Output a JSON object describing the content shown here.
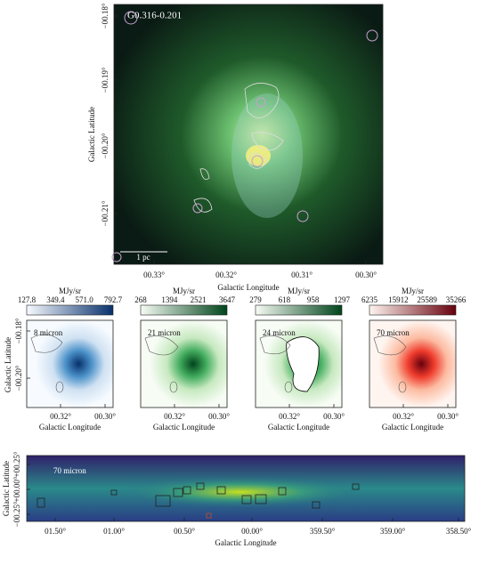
{
  "main": {
    "label": "G0.316-0.201",
    "scale_bar": "1 pc",
    "xlabel": "Galactic Longitude",
    "ylabel": "Galactic Latitude",
    "xticks": [
      "00.33°",
      "00.32°",
      "00.31°",
      "00.30°"
    ],
    "yticks": [
      "−00.18°",
      "−00.19°",
      "−00.20°",
      "−00.21°"
    ]
  },
  "panels": [
    {
      "label": "8 micron",
      "unit": "MJy/sr",
      "colorbar_ticks": [
        "127.8",
        "349.4",
        "571.0",
        "792.7"
      ],
      "xlabel": "Galactic Longitude",
      "xticks": [
        "00.32°",
        "00.30°"
      ],
      "ylabel": "Galactic Latitude",
      "yticks": [
        "−00.18°",
        "−00.20°"
      ]
    },
    {
      "label": "21 micron",
      "unit": "MJy/sr",
      "colorbar_ticks": [
        "268",
        "1394",
        "2521",
        "3647"
      ],
      "xlabel": "Galactic Longitude",
      "xticks": [
        "00.32°",
        "00.30°"
      ]
    },
    {
      "label": "24 micron",
      "unit": "MJy/sr",
      "colorbar_ticks": [
        "279",
        "618",
        "958",
        "1297"
      ],
      "xlabel": "Galactic Longitude",
      "xticks": [
        "00.32°",
        "00.30°"
      ]
    },
    {
      "label": "70 micron",
      "unit": "MJy/sr",
      "colorbar_ticks": [
        "6235",
        "15912",
        "25589",
        "35266"
      ],
      "xlabel": "Galactic Longitude",
      "xticks": [
        "00.32°",
        "00.30°"
      ]
    }
  ],
  "overview": {
    "label": "70 micron",
    "xlabel": "Galactic Longitude",
    "ylabel": "Galactic Latitude",
    "xticks": [
      "01.50°",
      "01.00°",
      "00.50°",
      "00.00°",
      "359.50°",
      "359.00°",
      "358.50°"
    ],
    "yticks": [
      "+00.25°",
      "+00.00°",
      "−00.25°"
    ]
  }
}
